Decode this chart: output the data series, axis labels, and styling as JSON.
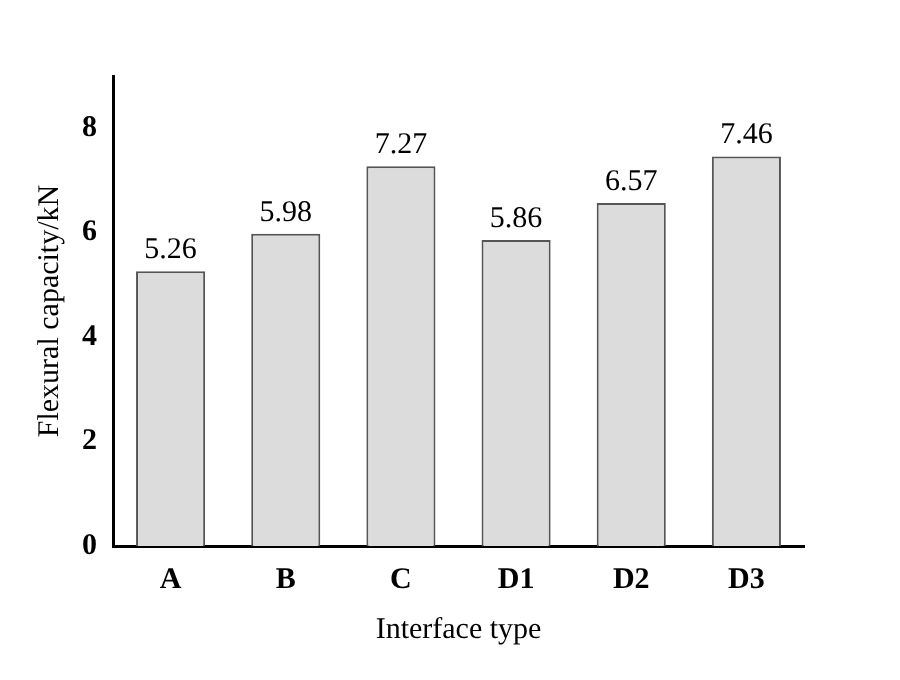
{
  "chart_data": {
    "type": "bar",
    "xlabel": "Interface type",
    "ylabel": "Flexural capacity/kN",
    "categories": [
      "A",
      "B",
      "C",
      "D1",
      "D2",
      "D3"
    ],
    "values": [
      5.26,
      5.98,
      7.27,
      5.86,
      6.57,
      7.46
    ],
    "color": "#dcdcdc",
    "ylim": [
      0,
      9
    ],
    "yticks": [
      0,
      2,
      4,
      6,
      8
    ],
    "grid": false,
    "legend": false,
    "data_labels": true
  }
}
